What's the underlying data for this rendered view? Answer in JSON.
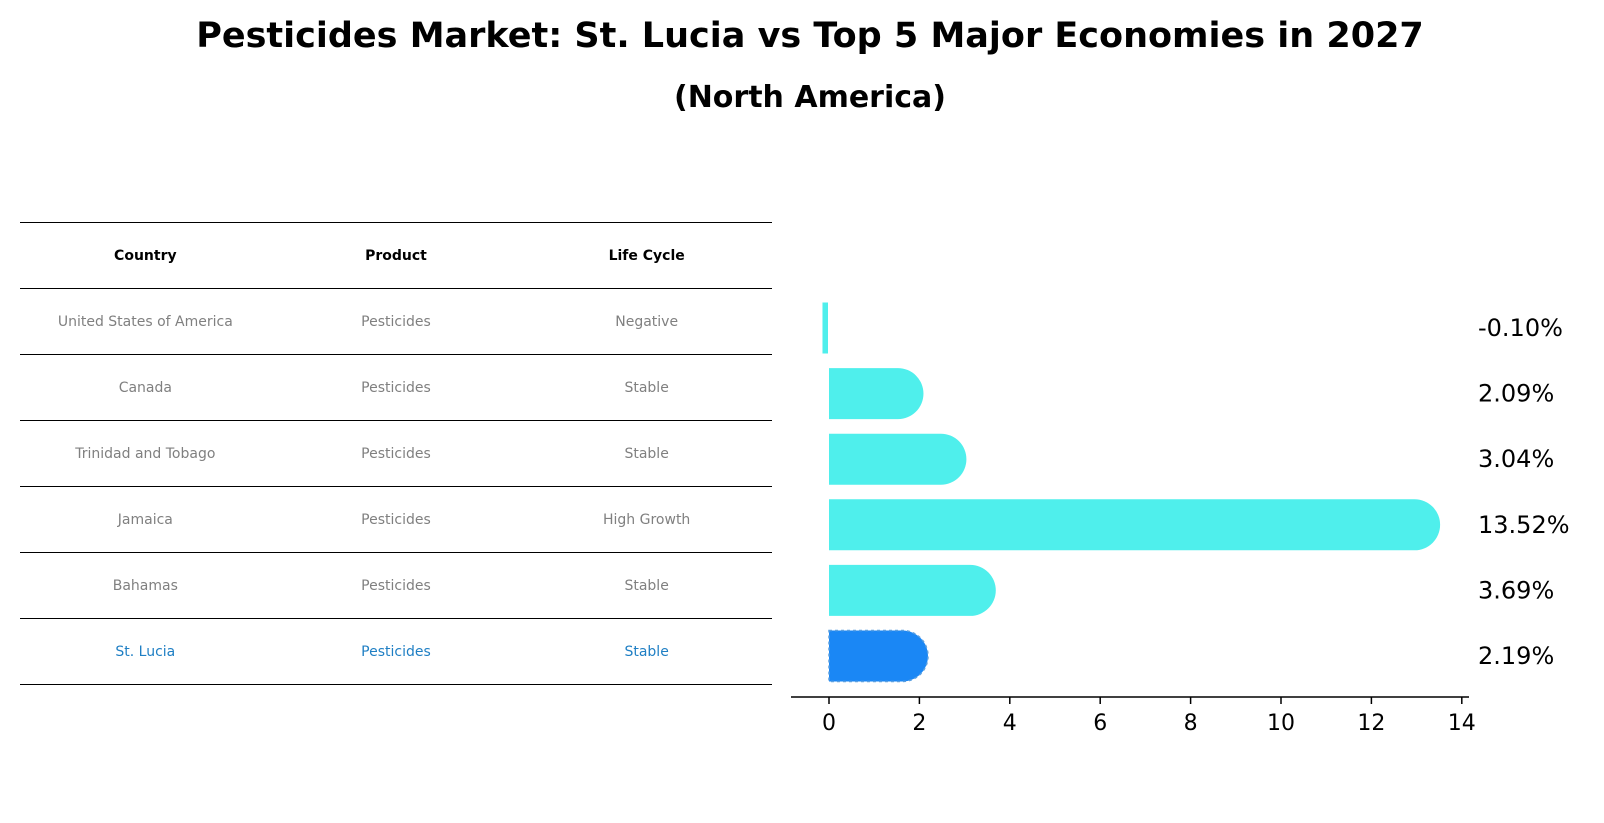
{
  "title": "Pesticides Market: St. Lucia vs Top 5 Major Economies in 2027",
  "subtitle": "(North America)",
  "table": {
    "headers": [
      "Country",
      "Product",
      "Life Cycle"
    ],
    "rows": [
      [
        "United States of America",
        "Pesticides",
        "Negative"
      ],
      [
        "Canada",
        "Pesticides",
        "Stable"
      ],
      [
        "Trinidad and Tobago",
        "Pesticides",
        "Stable"
      ],
      [
        "Jamaica",
        "Pesticides",
        "High Growth"
      ],
      [
        "Bahamas",
        "Pesticides",
        "Stable"
      ],
      [
        "St. Lucia",
        "Pesticides",
        "Stable"
      ]
    ],
    "highlight_row": 5
  },
  "chart_data": {
    "type": "bar",
    "orientation": "horizontal",
    "categories": [
      "United States of America",
      "Canada",
      "Trinidad and Tobago",
      "Jamaica",
      "Bahamas",
      "St. Lucia"
    ],
    "values": [
      -0.1,
      2.09,
      3.04,
      13.52,
      3.69,
      2.19
    ],
    "value_labels": [
      "-0.10%",
      "2.09%",
      "3.04%",
      "13.52%",
      "3.69%",
      "2.19%"
    ],
    "xlim": [
      -0.8,
      14.2
    ],
    "xticks": [
      0,
      2,
      4,
      6,
      8,
      10,
      12,
      14
    ],
    "colors": [
      "#4fefec",
      "#4fefec",
      "#4fefec",
      "#4fefec",
      "#4fefec",
      "#1a87f5"
    ],
    "highlight_index": 5,
    "grid": false
  }
}
